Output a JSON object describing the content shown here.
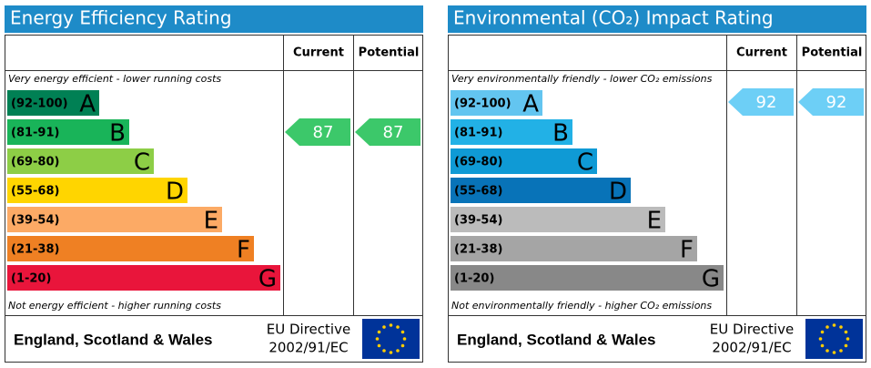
{
  "panels": [
    {
      "title": "Energy Efficiency Rating",
      "columns": [
        "Current",
        "Potential"
      ],
      "top_note": "Very energy efficient - lower running costs",
      "bottom_note": "Not energy efficient - higher running costs",
      "bands": [
        {
          "range": "(92-100)",
          "letter": "A",
          "color": "#008054"
        },
        {
          "range": "(81-91)",
          "letter": "B",
          "color": "#19b459"
        },
        {
          "range": "(69-80)",
          "letter": "C",
          "color": "#8dce46"
        },
        {
          "range": "(55-68)",
          "letter": "D",
          "color": "#ffd500"
        },
        {
          "range": "(39-54)",
          "letter": "E",
          "color": "#fcaa65"
        },
        {
          "range": "(21-38)",
          "letter": "F",
          "color": "#ef8023"
        },
        {
          "range": "(1-20)",
          "letter": "G",
          "color": "#e9153b"
        }
      ],
      "current": 87,
      "potential": 87,
      "arrow_color": "#3cc86a",
      "footer": {
        "region": "England, Scotland & Wales",
        "directive": [
          "EU Directive",
          "2002/91/EC"
        ]
      }
    },
    {
      "title": "Environmental (CO₂) Impact Rating",
      "columns": [
        "Current",
        "Potential"
      ],
      "top_note": "Very environmentally friendly - lower CO₂ emissions",
      "bottom_note": "Not environmentally friendly - higher CO₂ emissions",
      "bands": [
        {
          "range": "(92-100)",
          "letter": "A",
          "color": "#63c5f0"
        },
        {
          "range": "(81-91)",
          "letter": "B",
          "color": "#22b1e6"
        },
        {
          "range": "(69-80)",
          "letter": "C",
          "color": "#0f9ad5"
        },
        {
          "range": "(55-68)",
          "letter": "D",
          "color": "#0873b8"
        },
        {
          "range": "(39-54)",
          "letter": "E",
          "color": "#bbbbbb"
        },
        {
          "range": "(21-38)",
          "letter": "F",
          "color": "#a5a5a5"
        },
        {
          "range": "(1-20)",
          "letter": "G",
          "color": "#888888"
        }
      ],
      "current": 92,
      "potential": 92,
      "arrow_color": "#6dcff6",
      "footer": {
        "region": "England, Scotland & Wales",
        "directive": [
          "EU Directive",
          "2002/91/EC"
        ]
      }
    }
  ]
}
